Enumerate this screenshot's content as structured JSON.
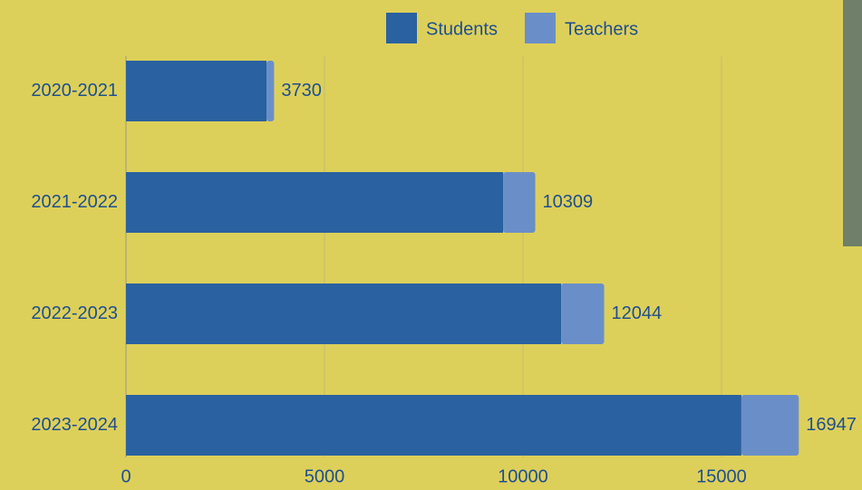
{
  "chart_data": {
    "type": "stacked-bar-horizontal",
    "categories": [
      "2020-2021",
      "2021-2022",
      "2022-2023",
      "2023-2024"
    ],
    "series": [
      {
        "name": "Students",
        "color": "#2a61a0",
        "values": [
          3540,
          9500,
          10960,
          15500
        ]
      },
      {
        "name": "Teachers",
        "color": "#6a8fc8",
        "values": [
          190,
          809,
          1084,
          1447
        ]
      }
    ],
    "totals": [
      3730,
      10309,
      12044,
      16947
    ],
    "xlim": [
      0,
      17500
    ],
    "xticks": [
      0,
      5000,
      10000,
      15000
    ],
    "grid": true,
    "legend": "top"
  }
}
